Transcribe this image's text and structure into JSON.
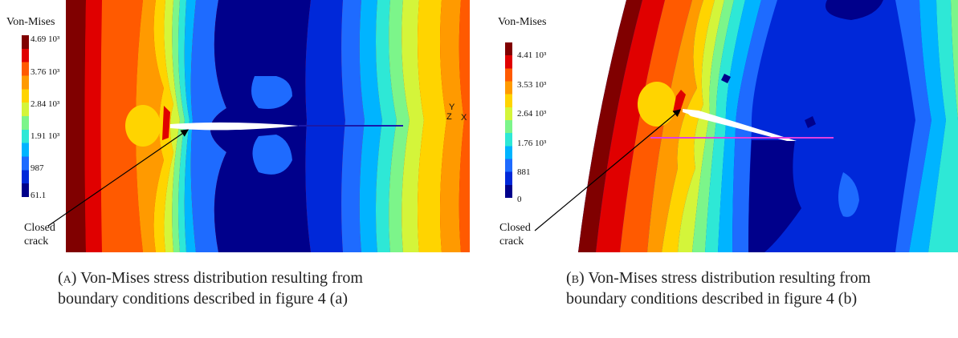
{
  "colors": {
    "scale": [
      "#00008b",
      "#0028d9",
      "#1e6bff",
      "#00b4ff",
      "#2ee8d6",
      "#7cf58a",
      "#d4f53a",
      "#ffd400",
      "#ff9a00",
      "#ff5a00",
      "#e00000",
      "#800000"
    ],
    "crack_a": "#1a1aa8",
    "crack_b": "#e040e0"
  },
  "panel_a": {
    "legend_title": "Von-Mises",
    "ticks": [
      "4.69 10³",
      "3.76 10³",
      "2.84 10³",
      "1.91 10³",
      "987",
      "61.1"
    ],
    "axis_y": "Y",
    "axis_z": "Z",
    "axis_x": "X",
    "annotation": [
      "Closed",
      "crack"
    ],
    "caption_tag": "(a)",
    "caption_text": "Von-Mises stress distribution resulting from boundary conditions described in figure 4 (a)"
  },
  "panel_b": {
    "legend_title": "Von-Mises",
    "ticks": [
      "4.41 10³",
      "3.53 10³",
      "2.64 10³",
      "1.76 10³",
      "881",
      "0"
    ],
    "annotation": [
      "Closed",
      "crack"
    ],
    "caption_tag": "(b)",
    "caption_text": "Von-Mises stress distribution resulting from boundary conditions described in figure 4 (b)"
  }
}
